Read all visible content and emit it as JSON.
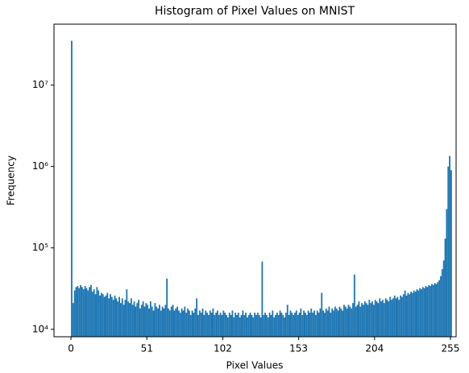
{
  "chart_data": {
    "type": "histogram",
    "title": "Histogram of Pixel Values on MNIST",
    "xlabel": "Pixel Values",
    "ylabel": "Frequency",
    "color": "#1f77b4",
    "log_y": true,
    "xlim": [
      -11.4,
      258.8
    ],
    "ylim": [
      8100,
      56000000
    ],
    "xticks": [
      0,
      51,
      102,
      153,
      204,
      255
    ],
    "yticks": [
      {
        "value": 10000,
        "label": "10⁴"
      },
      {
        "value": 100000,
        "label": "10⁵"
      },
      {
        "value": 1000000,
        "label": "10⁶"
      },
      {
        "value": 10000000,
        "label": "10⁷"
      }
    ],
    "bins": [
      0,
      1,
      2,
      3,
      4,
      5,
      6,
      7,
      8,
      9,
      10,
      11,
      12,
      13,
      14,
      15,
      16,
      17,
      18,
      19,
      20,
      21,
      22,
      23,
      24,
      25,
      26,
      27,
      28,
      29,
      30,
      31,
      32,
      33,
      34,
      35,
      36,
      37,
      38,
      39,
      40,
      41,
      42,
      43,
      44,
      45,
      46,
      47,
      48,
      49,
      50,
      51,
      52,
      53,
      54,
      55,
      56,
      57,
      58,
      59,
      60,
      61,
      62,
      63,
      64,
      65,
      66,
      67,
      68,
      69,
      70,
      71,
      72,
      73,
      74,
      75,
      76,
      77,
      78,
      79,
      80,
      81,
      82,
      83,
      84,
      85,
      86,
      87,
      88,
      89,
      90,
      91,
      92,
      93,
      94,
      95,
      96,
      97,
      98,
      99,
      100,
      101,
      102,
      103,
      104,
      105,
      106,
      107,
      108,
      109,
      110,
      111,
      112,
      113,
      114,
      115,
      116,
      117,
      118,
      119,
      120,
      121,
      122,
      123,
      124,
      125,
      126,
      127,
      128,
      129,
      130,
      131,
      132,
      133,
      134,
      135,
      136,
      137,
      138,
      139,
      140,
      141,
      142,
      143,
      144,
      145,
      146,
      147,
      148,
      149,
      150,
      151,
      152,
      153,
      154,
      155,
      156,
      157,
      158,
      159,
      160,
      161,
      162,
      163,
      164,
      165,
      166,
      167,
      168,
      169,
      170,
      171,
      172,
      173,
      174,
      175,
      176,
      177,
      178,
      179,
      180,
      181,
      182,
      183,
      184,
      185,
      186,
      187,
      188,
      189,
      190,
      191,
      192,
      193,
      194,
      195,
      196,
      197,
      198,
      199,
      200,
      201,
      202,
      203,
      204,
      205,
      206,
      207,
      208,
      209,
      210,
      211,
      212,
      213,
      214,
      215,
      216,
      217,
      218,
      219,
      220,
      221,
      222,
      223,
      224,
      225,
      226,
      227,
      228,
      229,
      230,
      231,
      232,
      233,
      234,
      235,
      236,
      237,
      238,
      239,
      240,
      241,
      242,
      243,
      244,
      245,
      246,
      247,
      248,
      249,
      250,
      251,
      252,
      253,
      254,
      255,
      256
    ],
    "values": [
      35000000,
      21000,
      30000,
      33000,
      34000,
      32000,
      35000,
      33000,
      31000,
      34000,
      32000,
      30000,
      33000,
      35000,
      29000,
      31000,
      27000,
      33000,
      30000,
      26000,
      28000,
      27000,
      25000,
      26000,
      28000,
      24000,
      27000,
      25000,
      23000,
      26000,
      24000,
      22000,
      25000,
      21000,
      24000,
      20000,
      23000,
      31000,
      22000,
      21000,
      24000,
      20000,
      22000,
      19000,
      21000,
      23000,
      18000,
      20000,
      22000,
      19000,
      21000,
      20000,
      18000,
      22000,
      19000,
      17000,
      21000,
      19000,
      18000,
      20000,
      17000,
      19000,
      18000,
      20000,
      42000,
      18000,
      17000,
      19000,
      20000,
      17000,
      18000,
      19000,
      17000,
      16000,
      18000,
      17000,
      19000,
      16000,
      18000,
      17000,
      15000,
      17000,
      16000,
      18000,
      24000,
      15000,
      17000,
      16000,
      18000,
      15000,
      17000,
      16000,
      15000,
      17000,
      16000,
      18000,
      15000,
      16000,
      17000,
      15000,
      16000,
      15000,
      17000,
      16000,
      15000,
      14000,
      16000,
      15000,
      17000,
      14000,
      16000,
      15000,
      16000,
      14000,
      15000,
      17000,
      15000,
      16000,
      14000,
      15000,
      16000,
      15000,
      14000,
      16000,
      15000,
      16000,
      15000,
      14000,
      68000,
      15000,
      16000,
      15000,
      14000,
      16000,
      15000,
      17000,
      14000,
      15000,
      16000,
      15000,
      17000,
      16000,
      15000,
      14000,
      16000,
      20000,
      15000,
      17000,
      16000,
      15000,
      16000,
      17000,
      15000,
      16000,
      18000,
      15000,
      17000,
      16000,
      15000,
      17000,
      16000,
      18000,
      16000,
      17000,
      15000,
      17000,
      16000,
      18000,
      28000,
      17000,
      16000,
      18000,
      17000,
      19000,
      16000,
      18000,
      17000,
      19000,
      18000,
      17000,
      19000,
      18000,
      17000,
      20000,
      19000,
      18000,
      20000,
      19000,
      18000,
      21000,
      47000,
      19000,
      20000,
      22000,
      19000,
      21000,
      20000,
      22000,
      21000,
      20000,
      23000,
      21000,
      22000,
      20000,
      23000,
      22000,
      21000,
      24000,
      22000,
      23000,
      21000,
      24000,
      23000,
      22000,
      25000,
      23000,
      24000,
      26000,
      24000,
      25000,
      23000,
      26000,
      25000,
      27000,
      30000,
      26000,
      28000,
      27000,
      29000,
      28000,
      30000,
      29000,
      31000,
      30000,
      32000,
      31000,
      33000,
      32000,
      34000,
      33000,
      35000,
      34000,
      36000,
      35000,
      37000,
      36000,
      38000,
      40000,
      45000,
      55000,
      70000,
      130000,
      300000,
      1000000,
      1350000,
      900000
    ]
  }
}
